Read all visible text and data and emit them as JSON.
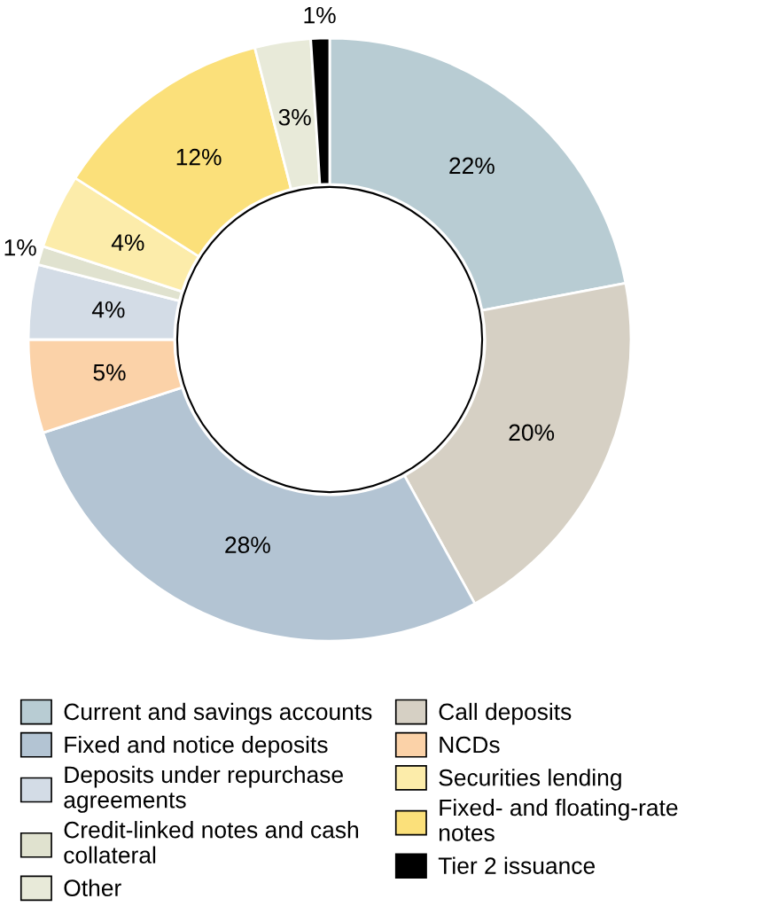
{
  "chart_data": {
    "type": "donut",
    "categories": [
      "Current and savings accounts",
      "Call deposits",
      "Fixed and notice deposits",
      "NCDs",
      "Deposits under repurchase agreements",
      "Securities lending",
      "Credit-linked notes and cash collateral",
      "Fixed- and floating-rate notes",
      "Other",
      "Tier 2 issuance"
    ],
    "values": [
      22,
      20,
      28,
      5,
      4,
      4,
      1,
      12,
      3,
      1
    ],
    "colors": [
      "#b8ccd3",
      "#d6d0c4",
      "#b3c4d3",
      "#fbd2a8",
      "#d3dce6",
      "#fcecaa",
      "#e0e2cf",
      "#fbe07a",
      "#e8ead9",
      "#000000"
    ],
    "value_labels": [
      "22%",
      "20%",
      "28%",
      "5%",
      "4%",
      "4%",
      "1%",
      "12%",
      "3%",
      "1%"
    ],
    "legend": "bottom"
  }
}
